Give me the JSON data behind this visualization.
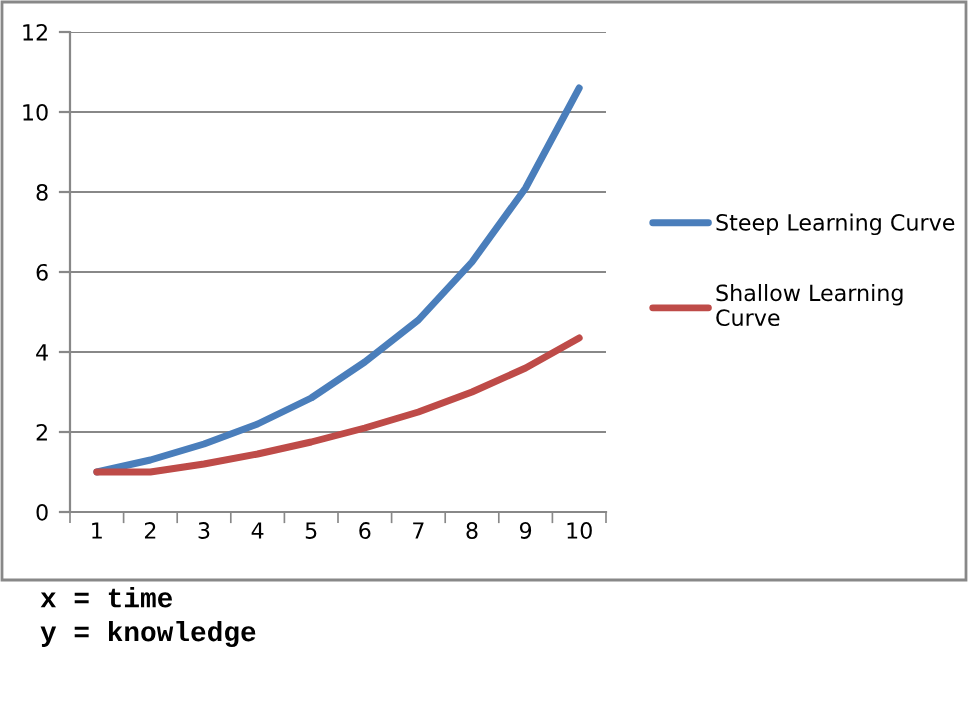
{
  "chart_data": {
    "type": "line",
    "categories": [
      "1",
      "2",
      "3",
      "4",
      "5",
      "6",
      "7",
      "8",
      "9",
      "10"
    ],
    "series": [
      {
        "name": "Steep Learning Curve",
        "color": "#4a7ebb",
        "values": [
          1,
          1.3,
          1.7,
          2.2,
          2.85,
          3.75,
          4.8,
          6.25,
          8.1,
          10.6
        ]
      },
      {
        "name": "Shallow Learning Curve",
        "color": "#be4b48",
        "values": [
          1,
          1,
          1.2,
          1.45,
          1.75,
          2.1,
          2.5,
          3.0,
          3.6,
          4.35
        ]
      }
    ],
    "ylim": [
      0,
      12
    ],
    "yticks": [
      0,
      2,
      4,
      6,
      8,
      10,
      12
    ],
    "grid": "y",
    "legend": "right",
    "marker": "none",
    "line_style": "solid",
    "annotations": [
      "x = time",
      "y = knowledge"
    ]
  }
}
